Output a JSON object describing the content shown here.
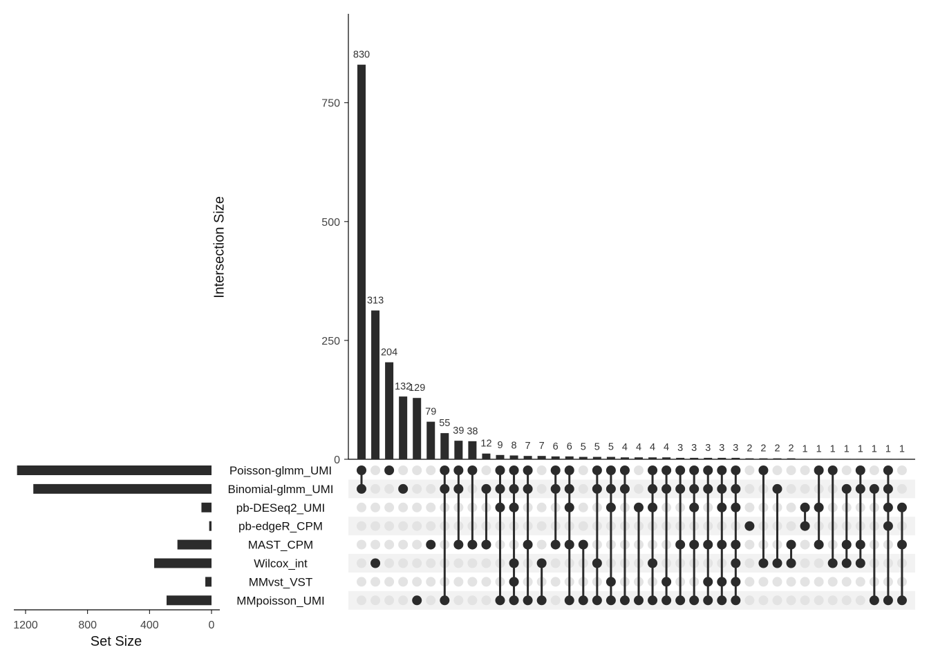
{
  "chart_data": {
    "type": "upset",
    "ylabel": "Intersection Size",
    "set_size_label": "Set Size",
    "ylim": [
      0,
      937
    ],
    "y_ticks": [
      0,
      250,
      500,
      750
    ],
    "set_size_ticks": [
      1200,
      800,
      400,
      0
    ],
    "set_size_lim": [
      0,
      1300
    ],
    "sets": [
      "Poisson-glmm_UMI",
      "Binomial-glmm_UMI",
      "pb-DESeq2_UMI",
      "pb-edgeR_CPM",
      "MAST_CPM",
      "Wilcox_int",
      "MMvst_VST",
      "MMpoisson_UMI"
    ],
    "set_sizes": [
      1255,
      1150,
      65,
      15,
      220,
      370,
      40,
      290
    ],
    "intersections": [
      {
        "size": 830,
        "sets": [
          0,
          1
        ]
      },
      {
        "size": 313,
        "sets": [
          5
        ]
      },
      {
        "size": 204,
        "sets": [
          0
        ]
      },
      {
        "size": 132,
        "sets": [
          1
        ]
      },
      {
        "size": 129,
        "sets": [
          7
        ]
      },
      {
        "size": 79,
        "sets": [
          4
        ]
      },
      {
        "size": 55,
        "sets": [
          0,
          1,
          7
        ]
      },
      {
        "size": 39,
        "sets": [
          0,
          1,
          4
        ]
      },
      {
        "size": 38,
        "sets": [
          0,
          4
        ]
      },
      {
        "size": 12,
        "sets": [
          1,
          4
        ]
      },
      {
        "size": 9,
        "sets": [
          0,
          1,
          2,
          7
        ]
      },
      {
        "size": 8,
        "sets": [
          0,
          1,
          2,
          5,
          6,
          7
        ]
      },
      {
        "size": 7,
        "sets": [
          0,
          1,
          4,
          7
        ]
      },
      {
        "size": 7,
        "sets": [
          5,
          7
        ]
      },
      {
        "size": 6,
        "sets": [
          0,
          1,
          4
        ]
      },
      {
        "size": 6,
        "sets": [
          0,
          1,
          2,
          4,
          7
        ]
      },
      {
        "size": 5,
        "sets": [
          4,
          7
        ]
      },
      {
        "size": 5,
        "sets": [
          0,
          1,
          5,
          7
        ]
      },
      {
        "size": 5,
        "sets": [
          0,
          1,
          2,
          6,
          7
        ]
      },
      {
        "size": 4,
        "sets": [
          0,
          1,
          7
        ]
      },
      {
        "size": 4,
        "sets": [
          2,
          7
        ]
      },
      {
        "size": 4,
        "sets": [
          0,
          1,
          2,
          5,
          7
        ]
      },
      {
        "size": 4,
        "sets": [
          0,
          1,
          6,
          7
        ]
      },
      {
        "size": 3,
        "sets": [
          0,
          1,
          4,
          7
        ]
      },
      {
        "size": 3,
        "sets": [
          0,
          1,
          2,
          4,
          7
        ]
      },
      {
        "size": 3,
        "sets": [
          0,
          1,
          4,
          6,
          7
        ]
      },
      {
        "size": 3,
        "sets": [
          0,
          1,
          2,
          4,
          6,
          7
        ]
      },
      {
        "size": 3,
        "sets": [
          0,
          1,
          2,
          4,
          5,
          6,
          7
        ]
      },
      {
        "size": 2,
        "sets": [
          3
        ]
      },
      {
        "size": 2,
        "sets": [
          0,
          5
        ]
      },
      {
        "size": 2,
        "sets": [
          1,
          5
        ]
      },
      {
        "size": 2,
        "sets": [
          4,
          5
        ]
      },
      {
        "size": 1,
        "sets": [
          2,
          3
        ]
      },
      {
        "size": 1,
        "sets": [
          0,
          2,
          4
        ]
      },
      {
        "size": 1,
        "sets": [
          0,
          5
        ]
      },
      {
        "size": 1,
        "sets": [
          1,
          4,
          5
        ]
      },
      {
        "size": 1,
        "sets": [
          0,
          1,
          4,
          5
        ]
      },
      {
        "size": 1,
        "sets": [
          1,
          7
        ]
      },
      {
        "size": 1,
        "sets": [
          0,
          1,
          2,
          3,
          7
        ]
      },
      {
        "size": 1,
        "sets": [
          2,
          4,
          7
        ]
      }
    ],
    "colors": {
      "bar": "#2b2b2b",
      "dot_active": "#2b2b2b",
      "dot_inactive": "#e3e3e3",
      "stripe": "#f2f2f2",
      "text": "#111111"
    }
  }
}
